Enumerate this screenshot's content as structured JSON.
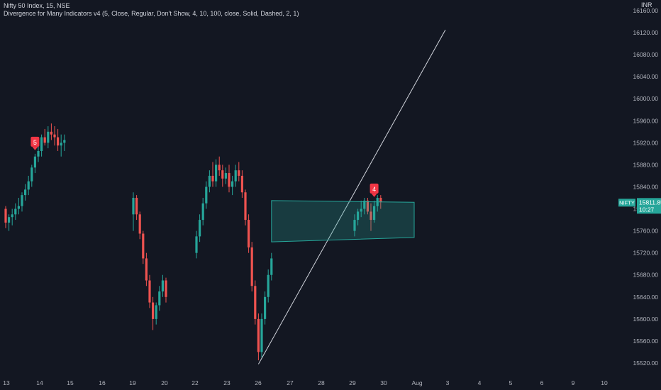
{
  "header": {
    "symbol_line": "Nifty 50 Index, 15, NSE",
    "indicator_line": "Divergence for Many Indicators v4 (5, Close, Regular, Don't Show, 4, 10, 100, close, Solid, Dashed, 2, 1)"
  },
  "price_axis": {
    "currency": "INR",
    "ticks": [
      "16160.00",
      "16120.00",
      "16080.00",
      "16040.00",
      "16000.00",
      "15960.00",
      "15920.00",
      "15880.00",
      "15840.00",
      "15800.00",
      "15760.00",
      "15720.00",
      "15680.00",
      "15640.00",
      "15600.00",
      "15560.00",
      "15520.00"
    ]
  },
  "price_badge": {
    "symbol": "NIFTY",
    "price": "15811.85",
    "countdown": "10:27"
  },
  "time_axis": {
    "labels": [
      "13",
      "14",
      "15",
      "16",
      "19",
      "20",
      "22",
      "23",
      "26",
      "27",
      "28",
      "29",
      "30",
      "Aug",
      "3",
      "4",
      "5",
      "6",
      "9",
      "10"
    ]
  },
  "annotations": {
    "divergence_labels": [
      "5",
      "4"
    ]
  },
  "colors": {
    "background": "#131722",
    "up": "#26a69a",
    "down": "#ef5350",
    "label": "#f23645",
    "trendline": "#d1d4dc",
    "channel_fill": "rgba(38,166,154,0.25)",
    "channel_edge": "#26a69a",
    "axis_text": "#b2b5be",
    "badge_bg": "#26a69a"
  },
  "chart_data": {
    "type": "candlestick",
    "xlabel": "",
    "ylabel": "",
    "ylim": [
      15510,
      16178
    ],
    "grid": false,
    "series": [
      {
        "values": [
          [
            15800,
            15805,
            15765,
            15775
          ],
          [
            15775,
            15790,
            15760,
            15785
          ],
          [
            15785,
            15800,
            15770,
            15790
          ],
          [
            15790,
            15810,
            15780,
            15800
          ],
          [
            15800,
            15820,
            15790,
            15805
          ],
          [
            15805,
            15830,
            15795,
            15825
          ],
          [
            15825,
            15845,
            15815,
            15835
          ],
          [
            15835,
            15860,
            15825,
            15850
          ],
          [
            15850,
            15880,
            15840,
            15875
          ],
          [
            15875,
            15900,
            15865,
            15895
          ],
          [
            15895,
            15920,
            15885,
            15905
          ],
          [
            15905,
            15935,
            15895,
            15930
          ],
          [
            15930,
            15945,
            15915,
            15920
          ],
          [
            15920,
            15950,
            15910,
            15940
          ],
          [
            15940,
            15955,
            15925,
            15935
          ],
          [
            15935,
            15950,
            15915,
            15930
          ],
          [
            15930,
            15945,
            15905,
            15915
          ],
          [
            15915,
            15935,
            15895,
            15920
          ],
          [
            15920,
            15935,
            15905,
            15925
          ],
          [
            15790,
            15830,
            15760,
            15820
          ],
          [
            15820,
            15825,
            15780,
            15790
          ],
          [
            15790,
            15795,
            15745,
            15755
          ],
          [
            15755,
            15760,
            15700,
            15710
          ],
          [
            15710,
            15720,
            15660,
            15670
          ],
          [
            15670,
            15680,
            15620,
            15630
          ],
          [
            15630,
            15640,
            15580,
            15600
          ],
          [
            15600,
            15630,
            15590,
            15625
          ],
          [
            15625,
            15660,
            15615,
            15650
          ],
          [
            15650,
            15680,
            15640,
            15670
          ],
          [
            15670,
            15675,
            15630,
            15640
          ],
          [
            15720,
            15760,
            15710,
            15750
          ],
          [
            15750,
            15790,
            15740,
            15780
          ],
          [
            15780,
            15820,
            15770,
            15810
          ],
          [
            15810,
            15850,
            15800,
            15840
          ],
          [
            15840,
            15870,
            15830,
            15860
          ],
          [
            15860,
            15885,
            15840,
            15850
          ],
          [
            15850,
            15890,
            15840,
            15880
          ],
          [
            15880,
            15895,
            15860,
            15870
          ],
          [
            15870,
            15880,
            15840,
            15855
          ],
          [
            15855,
            15875,
            15845,
            15865
          ],
          [
            15865,
            15880,
            15830,
            15840
          ],
          [
            15840,
            15860,
            15825,
            15850
          ],
          [
            15850,
            15880,
            15840,
            15870
          ],
          [
            15870,
            15885,
            15850,
            15860
          ],
          [
            15860,
            15870,
            15820,
            15830
          ],
          [
            15830,
            15835,
            15770,
            15780
          ],
          [
            15780,
            15790,
            15720,
            15730
          ],
          [
            15730,
            15740,
            15650,
            15660
          ],
          [
            15660,
            15670,
            15590,
            15600
          ],
          [
            15600,
            15610,
            15525,
            15540
          ],
          [
            15540,
            15610,
            15530,
            15600
          ],
          [
            15600,
            15650,
            15590,
            15640
          ],
          [
            15640,
            15690,
            15630,
            15680
          ],
          [
            15680,
            15720,
            15670,
            15710
          ],
          [
            15760,
            15790,
            15750,
            15780
          ],
          [
            15780,
            15800,
            15770,
            15795
          ],
          [
            15795,
            15815,
            15785,
            15800
          ],
          [
            15800,
            15820,
            15790,
            15815
          ],
          [
            15815,
            15820,
            15790,
            15795
          ],
          [
            15795,
            15810,
            15760,
            15780
          ],
          [
            15780,
            15815,
            15775,
            15805
          ],
          [
            15805,
            15825,
            15795,
            15820
          ],
          [
            15820,
            15825,
            15800,
            15812
          ]
        ]
      }
    ],
    "divergences": [
      {
        "label": "5",
        "start_bar": 9,
        "end_bar": 9
      },
      {
        "label": "4",
        "start_bar": 60,
        "end_bar": 60
      }
    ],
    "trendline": {
      "start_bar": 49,
      "start_price": 15518,
      "end_bar": 84,
      "end_price": 16125
    },
    "channel": {
      "start_bar": 53,
      "end_bar": 64,
      "top": [
        15815,
        15812
      ],
      "bottom": [
        15740,
        15748
      ]
    }
  }
}
